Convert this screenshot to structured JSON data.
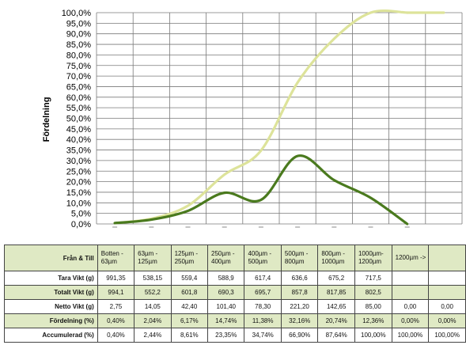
{
  "chart_data": {
    "type": "line",
    "ylabel": "Fördelning",
    "y_ticks": [
      "0,0%",
      "5,0%",
      "10,0%",
      "15,0%",
      "20,0%",
      "25,0%",
      "30,0%",
      "35,0%",
      "40,0%",
      "45,0%",
      "50,0%",
      "55,0%",
      "60,0%",
      "65,0%",
      "70,0%",
      "75,0%",
      "80,0%",
      "85,0%",
      "90,0%",
      "95,0%",
      "100,0%"
    ],
    "ylim": [
      0,
      100
    ],
    "categories": [
      "Botten - 63µm",
      "63µm - 125µm",
      "125µm - 250µm",
      "250µm - 400µm",
      "400µm - 500µm",
      "500µm - 800µm",
      "800µm - 1000µm",
      "1000µm - 1200µm",
      "1200µm ->"
    ],
    "series": [
      {
        "color": "#dde39a",
        "values": [
          0.4,
          2.44,
          8.61,
          23.35,
          34.74,
          66.9,
          87.64,
          100.0,
          100.0
        ]
      },
      {
        "color": "#4a7a1e",
        "values": [
          0.4,
          2.04,
          6.17,
          14.74,
          11.38,
          32.16,
          20.74,
          12.36,
          0.0
        ]
      }
    ],
    "grid": true
  },
  "table": {
    "header": {
      "label": "Från & Till",
      "cells": [
        [
          "Botten -",
          "63µm"
        ],
        [
          "63µm -",
          "125µm"
        ],
        [
          "125µm -",
          "250µm"
        ],
        [
          "250µm -",
          "400µm"
        ],
        [
          "400µm -",
          "500µm"
        ],
        [
          "500µm -",
          "800µm"
        ],
        [
          "800µm -",
          "1000µm"
        ],
        [
          "1000µm-",
          "1200µm"
        ],
        [
          "1200µm ->",
          ""
        ],
        [
          "",
          ""
        ]
      ]
    },
    "rows": [
      {
        "label": "Tara Vikt (g)",
        "style": "white",
        "values": [
          "991,35",
          "538,15",
          "559,4",
          "588,9",
          "617,4",
          "636,6",
          "675,2",
          "717,5",
          "",
          ""
        ]
      },
      {
        "label": "Totalt Vikt (g)",
        "style": "green",
        "values": [
          "994,1",
          "552,2",
          "601,8",
          "690,3",
          "695,7",
          "857,8",
          "817,85",
          "802,5",
          "",
          ""
        ]
      },
      {
        "label": "Netto Vikt (g)",
        "style": "white",
        "values": [
          "2,75",
          "14,05",
          "42,40",
          "101,40",
          "78,30",
          "221,20",
          "142,65",
          "85,00",
          "0,00",
          "0,00"
        ]
      },
      {
        "label": "Fördelning (%)",
        "style": "green",
        "values": [
          "0,40%",
          "2,04%",
          "6,17%",
          "14,74%",
          "11,38%",
          "32,16%",
          "20,74%",
          "12,36%",
          "0,00%",
          "0,00%"
        ]
      },
      {
        "label": "Accumulerad (%)",
        "style": "white",
        "values": [
          "0,40%",
          "2,44%",
          "8,61%",
          "23,35%",
          "34,74%",
          "66,90%",
          "87,64%",
          "100,00%",
          "100,00%",
          "100,00%"
        ]
      }
    ]
  }
}
